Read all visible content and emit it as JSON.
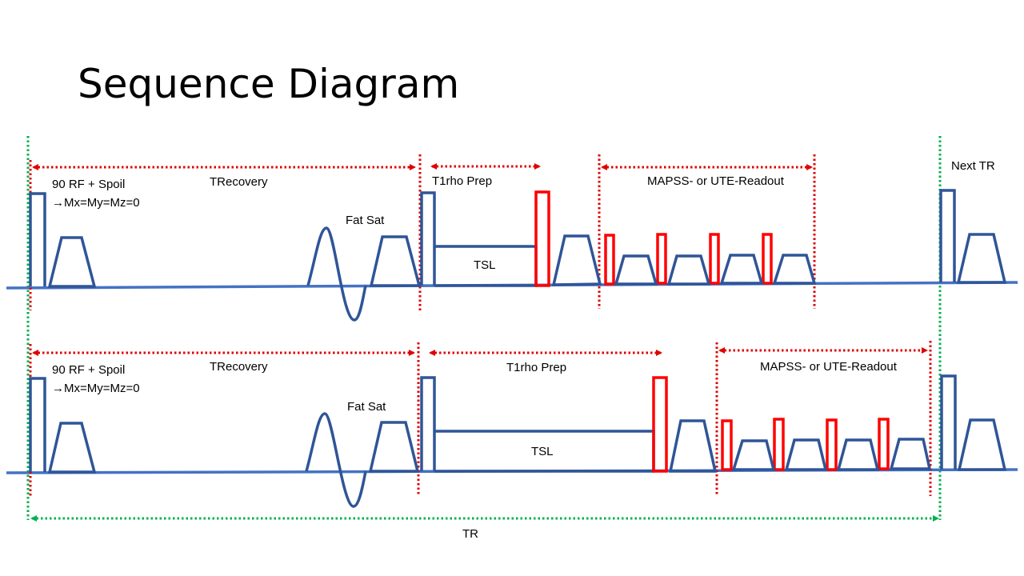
{
  "title": "Sequence Diagram",
  "colors": {
    "pulse": "#2F5597",
    "baseline": "#4472C4",
    "prep_pulse": "#FF0000",
    "interval_marker": "#E00000",
    "tr_marker": "#00B050"
  },
  "rows": [
    {
      "rf_label": "90 RF + Spoil",
      "rf_result": "→Mx=My=Mz=0",
      "trecovery": "TRecovery",
      "fat_sat": "Fat Sat",
      "t1rho_prep": "T1rho Prep",
      "tsl": "TSL",
      "readout": "MAPSS- or UTE-Readout",
      "next_tr": "Next TR"
    },
    {
      "rf_label": "90 RF + Spoil",
      "rf_result": "→Mx=My=Mz=0",
      "trecovery": "TRecovery",
      "fat_sat": "Fat Sat",
      "t1rho_prep": "T1rho Prep",
      "tsl": "TSL",
      "readout": "MAPSS- or UTE-Readout"
    }
  ],
  "tr_label": "TR"
}
